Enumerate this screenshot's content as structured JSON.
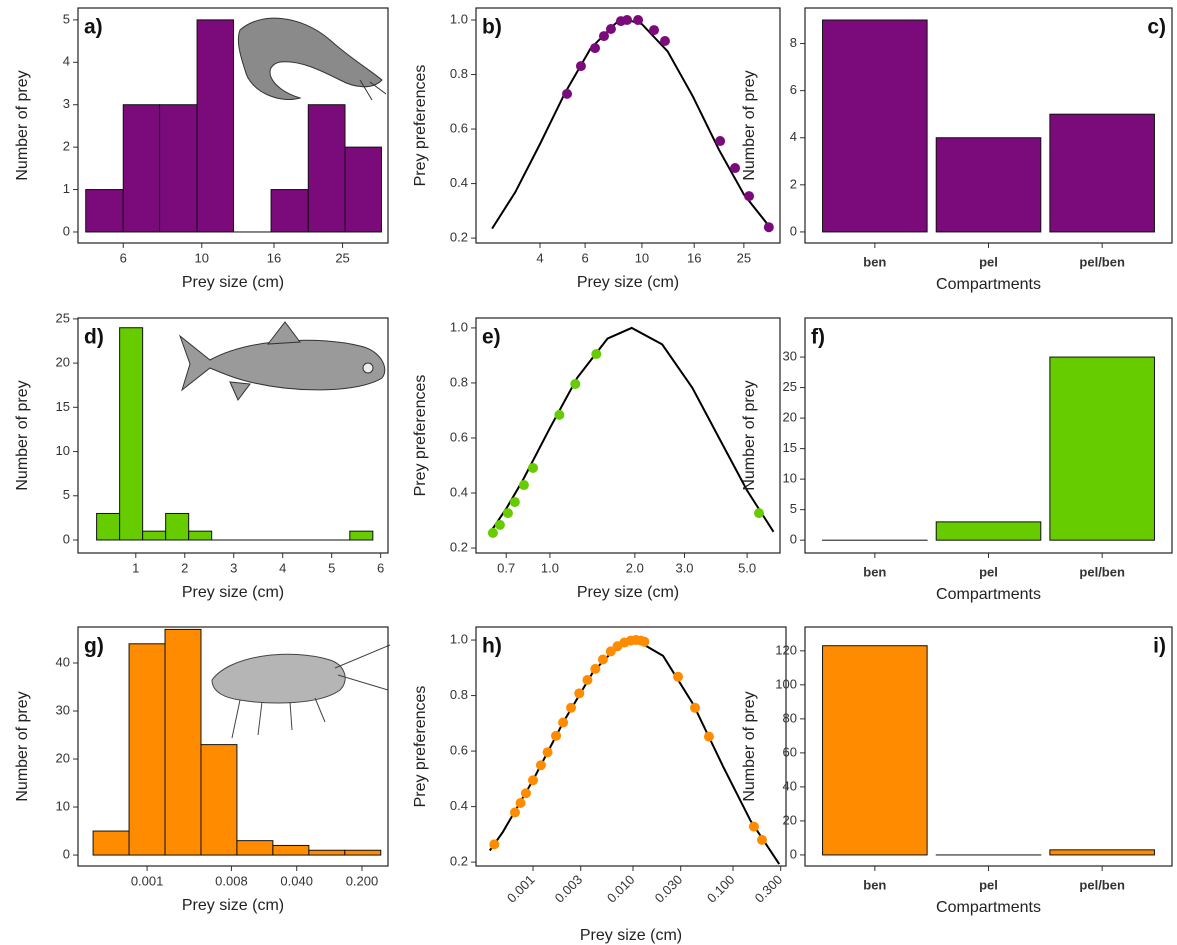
{
  "chart_data": [
    {
      "type": "histogram",
      "label": "a)",
      "xlabel": "Prey size (cm)",
      "ylabel": "Number of prey",
      "color": "#7b0a7b",
      "xscale": "log",
      "bins": [
        4.7,
        6,
        7.6,
        9.7,
        12.3,
        15.7,
        20,
        25.4,
        32.2
      ],
      "values": [
        1,
        3,
        3,
        5,
        0,
        1,
        3,
        2
      ],
      "xlim": [
        4.47,
        33.6
      ],
      "xticks": [
        6,
        10,
        16,
        25
      ],
      "ylim": [
        -0.26,
        5.28
      ],
      "yticks": [
        0,
        1,
        2,
        3,
        4,
        5
      ]
    },
    {
      "type": "line",
      "label": "b)",
      "xlabel": "Prey size (cm)",
      "ylabel": "Prey preferences",
      "xscale": "log",
      "xlim": [
        2.25,
        34.6
      ],
      "xticks": [
        4,
        6,
        10,
        16,
        25
      ],
      "ylim": [
        0.182,
        1.044
      ],
      "yticks": [
        0.2,
        0.4,
        0.6,
        0.8,
        {
          "value": 1,
          "label": "1.0"
        }
      ],
      "series": [
        {
          "kind": "line",
          "color": "#000000",
          "x": [
            2.6,
            3.2,
            4,
            5,
            6.3,
            7.9,
            8.8,
            10,
            12.6,
            15.8,
            20,
            25,
            31.6
          ],
          "values": [
            0.235,
            0.368,
            0.545,
            0.731,
            0.895,
            0.988,
            1.0,
            0.985,
            0.885,
            0.72,
            0.524,
            0.36,
            0.24
          ]
        },
        {
          "kind": "points",
          "color": "#7b0a7b",
          "x": [
            5.1,
            5.78,
            6.56,
            7.11,
            7.57,
            8.28,
            8.75,
            9.66,
            11.15,
            12.3,
            20.2,
            23.1,
            26.2,
            31.3
          ],
          "values": [
            0.729,
            0.831,
            0.897,
            0.941,
            0.967,
            0.996,
            1.0,
            1.0,
            0.963,
            0.923,
            0.556,
            0.457,
            0.354,
            0.24
          ]
        }
      ]
    },
    {
      "type": "bar",
      "label": "c)",
      "label_position": "right",
      "xlabel": "Compartments",
      "ylabel": "Number of prey",
      "color": "#7b0a7b",
      "categories": [
        "ben",
        "pel",
        "pel/ben"
      ],
      "values": [
        9,
        4,
        5
      ],
      "ylim": [
        -0.47,
        9.51
      ],
      "yticks": [
        0,
        2,
        4,
        6,
        8
      ]
    },
    {
      "type": "histogram",
      "label": "d)",
      "xlabel": "Prey size (cm)",
      "ylabel": "Number of prey",
      "color": "#66cc00",
      "bins": [
        0.2,
        0.67,
        1.14,
        1.61,
        2.08,
        2.55,
        3.02,
        3.49,
        3.96,
        4.43,
        4.9,
        5.37,
        5.84
      ],
      "values": [
        3,
        24,
        1,
        3,
        1,
        0,
        0,
        0,
        0,
        0,
        0,
        1
      ],
      "xlim": [
        -0.18,
        6.15
      ],
      "xticks": [
        1,
        2,
        3,
        4,
        5,
        6
      ],
      "ylim": [
        -1.47,
        25.1
      ],
      "yticks": [
        0,
        5,
        10,
        15,
        20,
        25
      ]
    },
    {
      "type": "line",
      "label": "e)",
      "xlabel": "Prey size (cm)",
      "ylabel": "Prey preferences",
      "xscale": "log",
      "xlim": [
        0.547,
        6.54
      ],
      "xticks": [
        0.7,
        {
          "value": 1,
          "label": "1.0"
        },
        {
          "value": 2,
          "label": "2.0"
        },
        {
          "value": 3,
          "label": "3.0"
        },
        {
          "value": 5,
          "label": "5.0"
        }
      ],
      "ylim": [
        0.182,
        1.036
      ],
      "yticks": [
        0.2,
        0.4,
        0.6,
        0.8,
        {
          "value": 1,
          "label": "1.0"
        }
      ],
      "series": [
        {
          "kind": "line",
          "color": "#000000",
          "x": [
            0.61,
            0.7,
            0.8,
            1.0,
            1.25,
            1.6,
            1.95,
            2.5,
            3.2,
            4,
            5,
            6.2
          ],
          "values": [
            0.252,
            0.343,
            0.445,
            0.636,
            0.819,
            0.961,
            1.0,
            0.94,
            0.782,
            0.595,
            0.409,
            0.259
          ]
        },
        {
          "kind": "points",
          "color": "#66cc00",
          "x": [
            0.628,
            0.665,
            0.71,
            0.751,
            0.809,
            0.871,
            1.08,
            1.23,
            1.46,
            5.51
          ],
          "values": [
            0.255,
            0.284,
            0.327,
            0.367,
            0.429,
            0.491,
            0.684,
            0.796,
            0.905,
            0.327
          ]
        }
      ]
    },
    {
      "type": "bar",
      "label": "f)",
      "xlabel": "Compartments",
      "ylabel": "Number of prey",
      "color": "#66cc00",
      "categories": [
        "ben",
        "pel",
        "pel/ben"
      ],
      "values": [
        0,
        3,
        30
      ],
      "ylim": [
        -2.1,
        36.4
      ],
      "yticks": [
        0,
        5,
        10,
        15,
        20,
        25,
        30
      ]
    },
    {
      "type": "histogram",
      "label": "g)",
      "xlabel": "Prey size (cm)",
      "ylabel": "Number of prey",
      "color": "#ff8c00",
      "xscale": "log",
      "bins": [
        0.000264,
        0.000641,
        0.001556,
        0.003776,
        0.00916,
        0.02223,
        0.054,
        0.131,
        0.318
      ],
      "values": [
        5,
        44,
        47,
        23,
        3,
        2,
        1,
        1
      ],
      "xlim": [
        0.000182,
        0.38
      ],
      "xticks": [
        0.001,
        0.008,
        {
          "value": 0.04,
          "label": "0.040"
        },
        {
          "value": 0.2,
          "label": "0.200"
        }
      ],
      "ylim": [
        -2.28,
        47.5
      ],
      "yticks": [
        0,
        10,
        20,
        30,
        40
      ]
    },
    {
      "type": "line",
      "label": "h)",
      "xlabel": "Prey size (cm)",
      "ylabel": "Prey preferences",
      "xscale": "log",
      "xtick_rotation": 45,
      "xlim": [
        0.000269,
        0.339
      ],
      "xticks": [
        0.001,
        0.003,
        {
          "value": 0.01,
          "label": "0.010"
        },
        {
          "value": 0.03,
          "label": "0.030"
        },
        {
          "value": 0.1,
          "label": "0.100"
        },
        {
          "value": 0.3,
          "label": "0.300"
        }
      ],
      "ylim": [
        0.186,
        1.047
      ],
      "yticks": [
        0.2,
        0.4,
        0.6,
        0.8,
        {
          "value": 1,
          "label": "1.0"
        }
      ],
      "series": [
        {
          "kind": "line",
          "color": "#000000",
          "x": [
            0.00037,
            0.0005,
            0.001,
            0.002,
            0.004,
            0.007,
            0.0107,
            0.02,
            0.04,
            0.08,
            0.15,
            0.29
          ],
          "values": [
            0.242,
            0.309,
            0.495,
            0.703,
            0.886,
            0.978,
            1.0,
            0.943,
            0.769,
            0.543,
            0.349,
            0.193
          ]
        },
        {
          "kind": "points",
          "color": "#ff8c00",
          "x": [
            0.00041,
            0.00066,
            0.00075,
            0.00085,
            0.001,
            0.0012,
            0.0014,
            0.0017,
            0.002,
            0.0024,
            0.0029,
            0.0035,
            0.0042,
            0.005,
            0.006,
            0.007,
            0.0082,
            0.0095,
            0.0107,
            0.012,
            0.013,
            0.0282,
            0.0417,
            0.0575,
            0.162,
            0.195
          ],
          "values": [
            0.264,
            0.379,
            0.413,
            0.448,
            0.495,
            0.549,
            0.596,
            0.655,
            0.703,
            0.756,
            0.808,
            0.856,
            0.896,
            0.93,
            0.959,
            0.978,
            0.991,
            0.998,
            1.0,
            0.998,
            0.994,
            0.868,
            0.756,
            0.652,
            0.328,
            0.28
          ]
        }
      ]
    },
    {
      "type": "bar",
      "label": "i)",
      "label_position": "right",
      "xlabel": "Compartments",
      "ylabel": "Number of prey",
      "color": "#ff8c00",
      "categories": [
        "ben",
        "pel",
        "pel/ben"
      ],
      "values": [
        123,
        0,
        3
      ],
      "ylim": [
        -6.5,
        134
      ],
      "yticks": [
        0,
        20,
        40,
        60,
        80,
        100,
        120
      ]
    }
  ]
}
